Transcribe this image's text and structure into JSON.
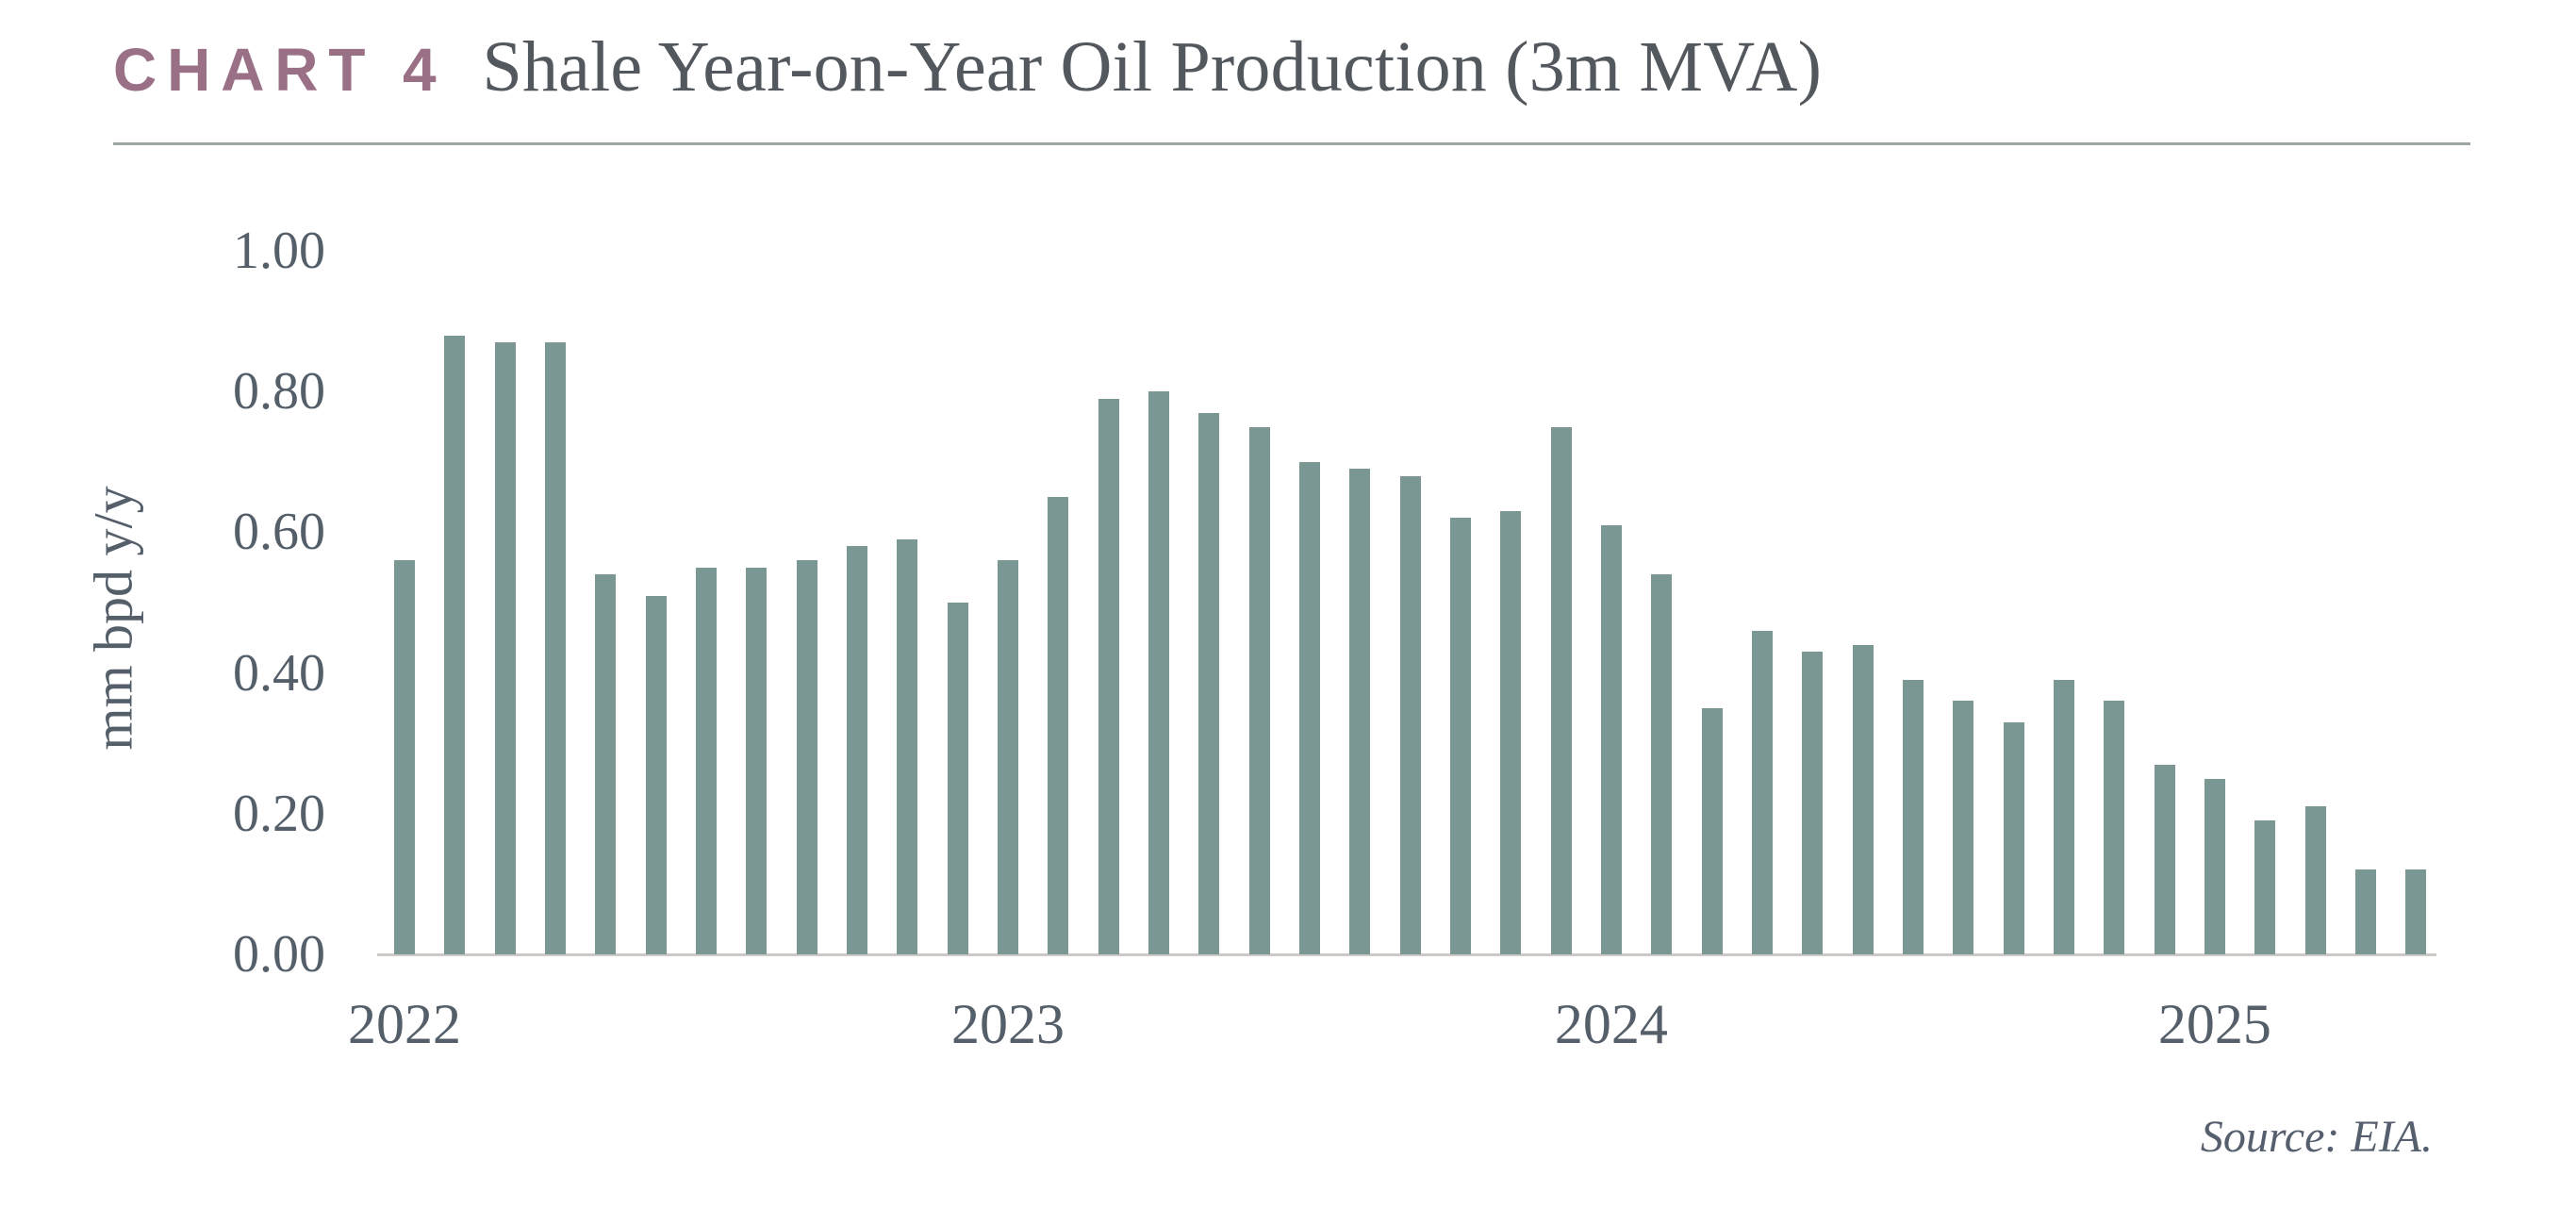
{
  "header": {
    "kicker": "CHART 4",
    "title": "Shale Year-on-Year Oil Production (3m MVA)"
  },
  "source_note": "Source: EIA.",
  "colors": {
    "bar": "#7b9794",
    "kicker": "#9a7086",
    "title_text": "#53585e",
    "axis_text": "#545f6a",
    "header_rule": "#9ca7a3",
    "axis_line": "#ccc9c6",
    "background": "#ffffff"
  },
  "chart_data": {
    "type": "bar",
    "title": "Shale Year-on-Year Oil Production (3m MVA)",
    "xlabel": "",
    "ylabel": "mm bpd y/y",
    "ylim": [
      0,
      1.0
    ],
    "grid": false,
    "legend_position": "none",
    "yticks": [
      "0.00",
      "0.20",
      "0.40",
      "0.60",
      "0.80",
      "1.00"
    ],
    "x": [
      "2022-01",
      "2022-02",
      "2022-03",
      "2022-04",
      "2022-05",
      "2022-06",
      "2022-07",
      "2022-08",
      "2022-09",
      "2022-10",
      "2022-11",
      "2022-12",
      "2023-01",
      "2023-02",
      "2023-03",
      "2023-04",
      "2023-05",
      "2023-06",
      "2023-07",
      "2023-08",
      "2023-09",
      "2023-10",
      "2023-11",
      "2023-12",
      "2024-01",
      "2024-02",
      "2024-03",
      "2024-04",
      "2024-05",
      "2024-06",
      "2024-07",
      "2024-08",
      "2024-09",
      "2024-10",
      "2024-11",
      "2024-12",
      "2025-01",
      "2025-02",
      "2025-03",
      "2025-04",
      "2025-05"
    ],
    "values": [
      0.56,
      0.88,
      0.87,
      0.87,
      0.54,
      0.51,
      0.55,
      0.55,
      0.56,
      0.58,
      0.59,
      0.5,
      0.56,
      0.65,
      0.79,
      0.8,
      0.77,
      0.75,
      0.7,
      0.69,
      0.68,
      0.62,
      0.63,
      0.75,
      0.61,
      0.54,
      0.35,
      0.46,
      0.43,
      0.44,
      0.39,
      0.36,
      0.33,
      0.39,
      0.36,
      0.27,
      0.25,
      0.19,
      0.21,
      0.12,
      0.12
    ],
    "year_ticks": [
      {
        "label": "2022",
        "index": 0
      },
      {
        "label": "2023",
        "index": 12
      },
      {
        "label": "2024",
        "index": 24
      },
      {
        "label": "2025",
        "index": 36
      }
    ]
  }
}
